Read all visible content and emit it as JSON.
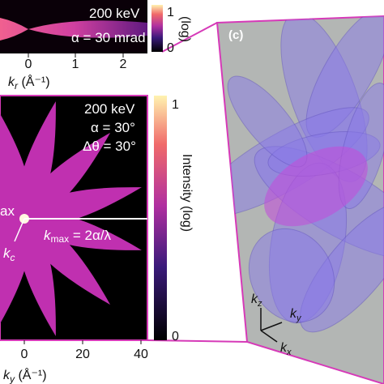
{
  "panel_b_top": {
    "energy": "200 keV",
    "alpha": "α = 30 mrad",
    "xticks": [
      0,
      1,
      2
    ],
    "colorbar": {
      "max": "1",
      "min": "0",
      "label": "(log)"
    },
    "xlabel": {
      "symbol": "k",
      "subscript": "r",
      "unit": " (Å⁻¹)"
    }
  },
  "panel_b": {
    "energy": "200 keV",
    "alpha": "α = 30°",
    "dtheta": "Δθ = 30°",
    "kmax": {
      "symbol": "k",
      "subscript": "max",
      "formula": " = 2α/λ"
    },
    "cut_label": "ax",
    "kc": {
      "symbol": "k",
      "subscript": "c"
    },
    "xticks": [
      0,
      20,
      40
    ],
    "colorbar": {
      "max": "1",
      "min": "0",
      "label": "Intensity (log)"
    },
    "xlabel": {
      "symbol": "k",
      "subscript": "y",
      "unit": " (Å⁻¹)"
    }
  },
  "panel_c": {
    "label": "(c)",
    "axes": {
      "z": "z",
      "y": "y",
      "x": "x",
      "symbol": "k"
    }
  }
}
